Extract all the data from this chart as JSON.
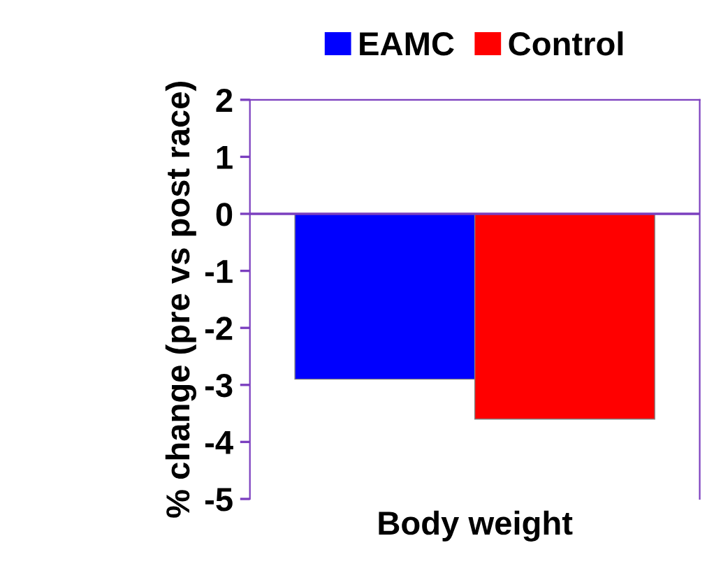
{
  "chart_data": {
    "type": "bar",
    "ylabel": "% change (pre vs post race)",
    "categories": [
      "Body weight"
    ],
    "series": [
      {
        "name": "EAMC",
        "color": "#0000ff",
        "values": [
          -2.9
        ]
      },
      {
        "name": "Control",
        "color": "#ff0000",
        "values": [
          -3.6
        ]
      }
    ],
    "ylim": [
      -5,
      2
    ],
    "yticks": [
      {
        "value": -5,
        "label": "-5"
      },
      {
        "value": -4,
        "label": "-4"
      },
      {
        "value": -3,
        "label": "-3"
      },
      {
        "value": -2,
        "label": "-2"
      },
      {
        "value": -1,
        "label": "-1"
      },
      0,
      1,
      2
    ],
    "ref_lines": [
      {
        "axis": "y",
        "value": 0,
        "color": "#7b3fbf"
      }
    ],
    "grid": false,
    "legend": "top"
  }
}
